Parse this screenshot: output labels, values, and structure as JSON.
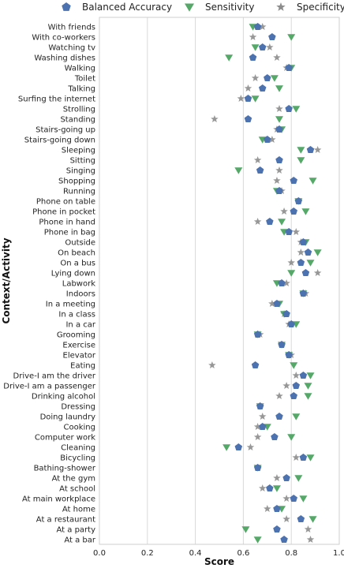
{
  "chart_data": {
    "type": "scatter",
    "title": "",
    "xlabel": "Score",
    "ylabel": "Context/Activity",
    "xlim": [
      0.0,
      1.0
    ],
    "xticks": [
      "0.0",
      "0.2",
      "0.4",
      "0.6",
      "0.8",
      "1.0"
    ],
    "grid": "vertical",
    "legend": {
      "placement": "top",
      "entries": [
        {
          "name": "Balanced Accuracy",
          "marker": "pentagon",
          "color": "#4c72b0"
        },
        {
          "name": "Sensitivity",
          "marker": "triangle-down",
          "color": "#55a868"
        },
        {
          "name": "Specificity",
          "marker": "star",
          "color": "#8c8c8c"
        }
      ]
    },
    "categories": [
      "With friends",
      "With co-workers",
      "Watching tv",
      "Washing dishes",
      "Walking",
      "Toilet",
      "Talking",
      "Surfing the internet",
      "Strolling",
      "Standing",
      "Stairs-going up",
      "Stairs-going down",
      "Sleeping",
      "Sitting",
      "Singing",
      "Shopping",
      "Running",
      "Phone on table",
      "Phone in pocket",
      "Phone in hand",
      "Phone in bag",
      "Outside",
      "On beach",
      "On a bus",
      "Lying down",
      "Labwork",
      "Indoors",
      "In a meeting",
      "In a class",
      "In a car",
      "Grooming",
      "Exercise",
      "Elevator",
      "Eating",
      "Drive-I am the driver",
      "Drive-I am a passenger",
      "Drinking alcohol",
      "Dressing",
      "Doing laundry",
      "Cooking",
      "Computer work",
      "Cleaning",
      "Bicycling",
      "Bathing-shower",
      "At the gym",
      "At school",
      "At main workplace",
      "At home",
      "At a restaurant",
      "At a party",
      "At a bar"
    ],
    "series": [
      {
        "name": "Balanced Accuracy",
        "values": [
          0.66,
          0.72,
          0.68,
          0.64,
          0.79,
          0.7,
          0.68,
          0.62,
          0.79,
          0.62,
          0.75,
          0.7,
          0.88,
          0.75,
          0.67,
          0.81,
          0.75,
          0.83,
          0.81,
          0.71,
          0.79,
          0.85,
          0.87,
          0.84,
          0.86,
          0.76,
          0.85,
          0.74,
          0.78,
          0.8,
          0.66,
          0.76,
          0.79,
          0.65,
          0.85,
          0.82,
          0.81,
          0.67,
          0.75,
          0.68,
          0.73,
          0.58,
          0.85,
          0.66,
          0.78,
          0.71,
          0.81,
          0.74,
          0.84,
          0.74,
          0.77
        ]
      },
      {
        "name": "Sensitivity",
        "values": [
          0.64,
          0.8,
          0.65,
          0.54,
          0.8,
          0.73,
          0.75,
          0.65,
          0.82,
          0.75,
          0.76,
          0.68,
          0.84,
          0.84,
          0.58,
          0.89,
          0.74,
          0.83,
          0.86,
          0.76,
          0.77,
          0.86,
          0.91,
          0.88,
          0.8,
          0.74,
          0.85,
          0.75,
          0.77,
          0.82,
          0.66,
          0.76,
          0.79,
          0.81,
          0.88,
          0.87,
          0.87,
          0.67,
          0.82,
          0.7,
          0.8,
          0.53,
          0.88,
          0.66,
          0.83,
          0.74,
          0.85,
          0.76,
          0.89,
          0.61,
          0.66
        ]
      },
      {
        "name": "Specificity",
        "values": [
          0.68,
          0.64,
          0.71,
          0.74,
          0.78,
          0.65,
          0.62,
          0.59,
          0.75,
          0.48,
          0.74,
          0.72,
          0.91,
          0.66,
          0.75,
          0.74,
          0.76,
          0.83,
          0.77,
          0.66,
          0.82,
          0.84,
          0.84,
          0.8,
          0.91,
          0.78,
          0.86,
          0.72,
          0.77,
          0.79,
          0.67,
          0.76,
          0.8,
          0.47,
          0.82,
          0.78,
          0.75,
          0.67,
          0.68,
          0.66,
          0.66,
          0.63,
          0.82,
          0.66,
          0.74,
          0.68,
          0.78,
          0.7,
          0.78,
          0.87,
          0.88
        ]
      }
    ]
  }
}
